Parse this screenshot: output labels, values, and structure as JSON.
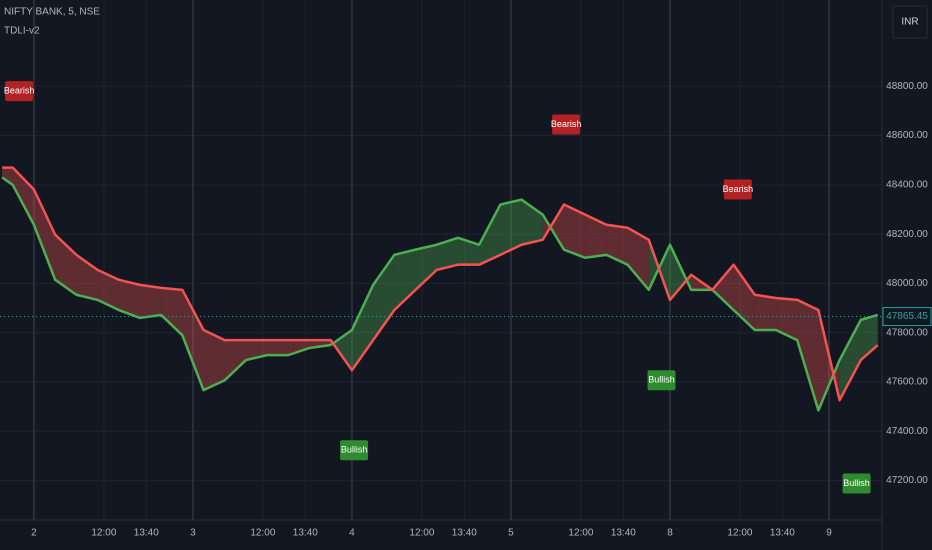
{
  "chart_data": {
    "type": "line",
    "title": "NIFTY BANK, 5, NSE",
    "subtitle": "TDLI-v2",
    "currency": "INR",
    "last_price": 47865.45,
    "last_price_color": "#26a69a",
    "grid": true,
    "x": [
      -15,
      -10,
      0,
      10,
      20,
      30,
      40,
      50,
      60,
      70,
      80,
      90,
      100,
      110,
      120,
      130,
      140,
      150,
      160,
      170,
      180,
      190,
      200,
      210,
      220,
      230,
      240,
      250,
      260,
      270,
      280,
      290,
      300,
      310,
      320,
      330,
      340,
      350,
      360,
      370,
      380,
      390,
      398
    ],
    "series": [
      {
        "color": "#4caf50",
        "values": [
          48430,
          48400,
          48238,
          48015,
          47954,
          47933,
          47892,
          47860,
          47872,
          47790,
          47567,
          47607,
          47689,
          47709,
          47709,
          47738,
          47750,
          47811,
          47994,
          48116,
          48137,
          48157,
          48185,
          48157,
          48320,
          48340,
          48279,
          48137,
          48104,
          48116,
          48076,
          47974,
          48157,
          47974,
          47974,
          47892,
          47811,
          47811,
          47770,
          47485,
          47689,
          47852,
          47872
        ]
      },
      {
        "color": "#f55252",
        "values": [
          48470,
          48470,
          48381,
          48198,
          48116,
          48055,
          48015,
          47994,
          47982,
          47974,
          47811,
          47770,
          47770,
          47770,
          47770,
          47770,
          47770,
          47648,
          47770,
          47892,
          47974,
          48055,
          48076,
          48076,
          48116,
          48157,
          48177,
          48320,
          48279,
          48238,
          48226,
          48177,
          47933,
          48035,
          47974,
          48076,
          47954,
          47941,
          47933,
          47892,
          47526,
          47689,
          47750
        ]
      }
    ],
    "fill_colors": [
      "rgba(76,175,80,0.35)",
      "rgba(239,83,80,0.35)"
    ],
    "xlim": [
      -16,
      400
    ],
    "xticks": [
      {
        "value": 0,
        "label": "2"
      },
      {
        "value": 33,
        "label": "12:00"
      },
      {
        "value": 53,
        "label": "13:40"
      },
      {
        "value": 75,
        "label": "3"
      },
      {
        "value": 108,
        "label": "12:00"
      },
      {
        "value": 128,
        "label": "13:40"
      },
      {
        "value": 150,
        "label": "4"
      },
      {
        "value": 183,
        "label": "12:00"
      },
      {
        "value": 203,
        "label": "13:40"
      },
      {
        "value": 225,
        "label": "5"
      },
      {
        "value": 258,
        "label": "12:00"
      },
      {
        "value": 278,
        "label": "13:40"
      },
      {
        "value": 300,
        "label": "8"
      },
      {
        "value": 333,
        "label": "12:00"
      },
      {
        "value": 353,
        "label": "13:40"
      },
      {
        "value": 375,
        "label": "9"
      }
    ],
    "ylim": [
      47040,
      49150
    ],
    "yticks": [
      {
        "value": 47200,
        "label": "47200.00"
      },
      {
        "value": 47400,
        "label": "47400.00"
      },
      {
        "value": 47600,
        "label": "47600.00"
      },
      {
        "value": 47800,
        "label": "47800.00"
      },
      {
        "value": 48000,
        "label": "48000.00"
      },
      {
        "value": 48200,
        "label": "48200.00"
      },
      {
        "value": 48400,
        "label": "48400.00"
      },
      {
        "value": 48600,
        "label": "48600.00"
      },
      {
        "value": 48800,
        "label": "48800.00"
      }
    ],
    "signals": [
      {
        "text": "Bearish",
        "x": -7,
        "y": 48780,
        "color": "#b22222"
      },
      {
        "text": "Bearish",
        "x": 251,
        "y": 48645,
        "color": "#b22222"
      },
      {
        "text": "Bearish",
        "x": 332,
        "y": 48381,
        "color": "#b22222"
      },
      {
        "text": "Bullish",
        "x": 151,
        "y": 47323,
        "color": "#2e8b2e"
      },
      {
        "text": "Bullish",
        "x": 296,
        "y": 47607,
        "color": "#2e8b2e"
      },
      {
        "text": "Bullish",
        "x": 388,
        "y": 47188,
        "color": "#2e8b2e"
      }
    ]
  }
}
